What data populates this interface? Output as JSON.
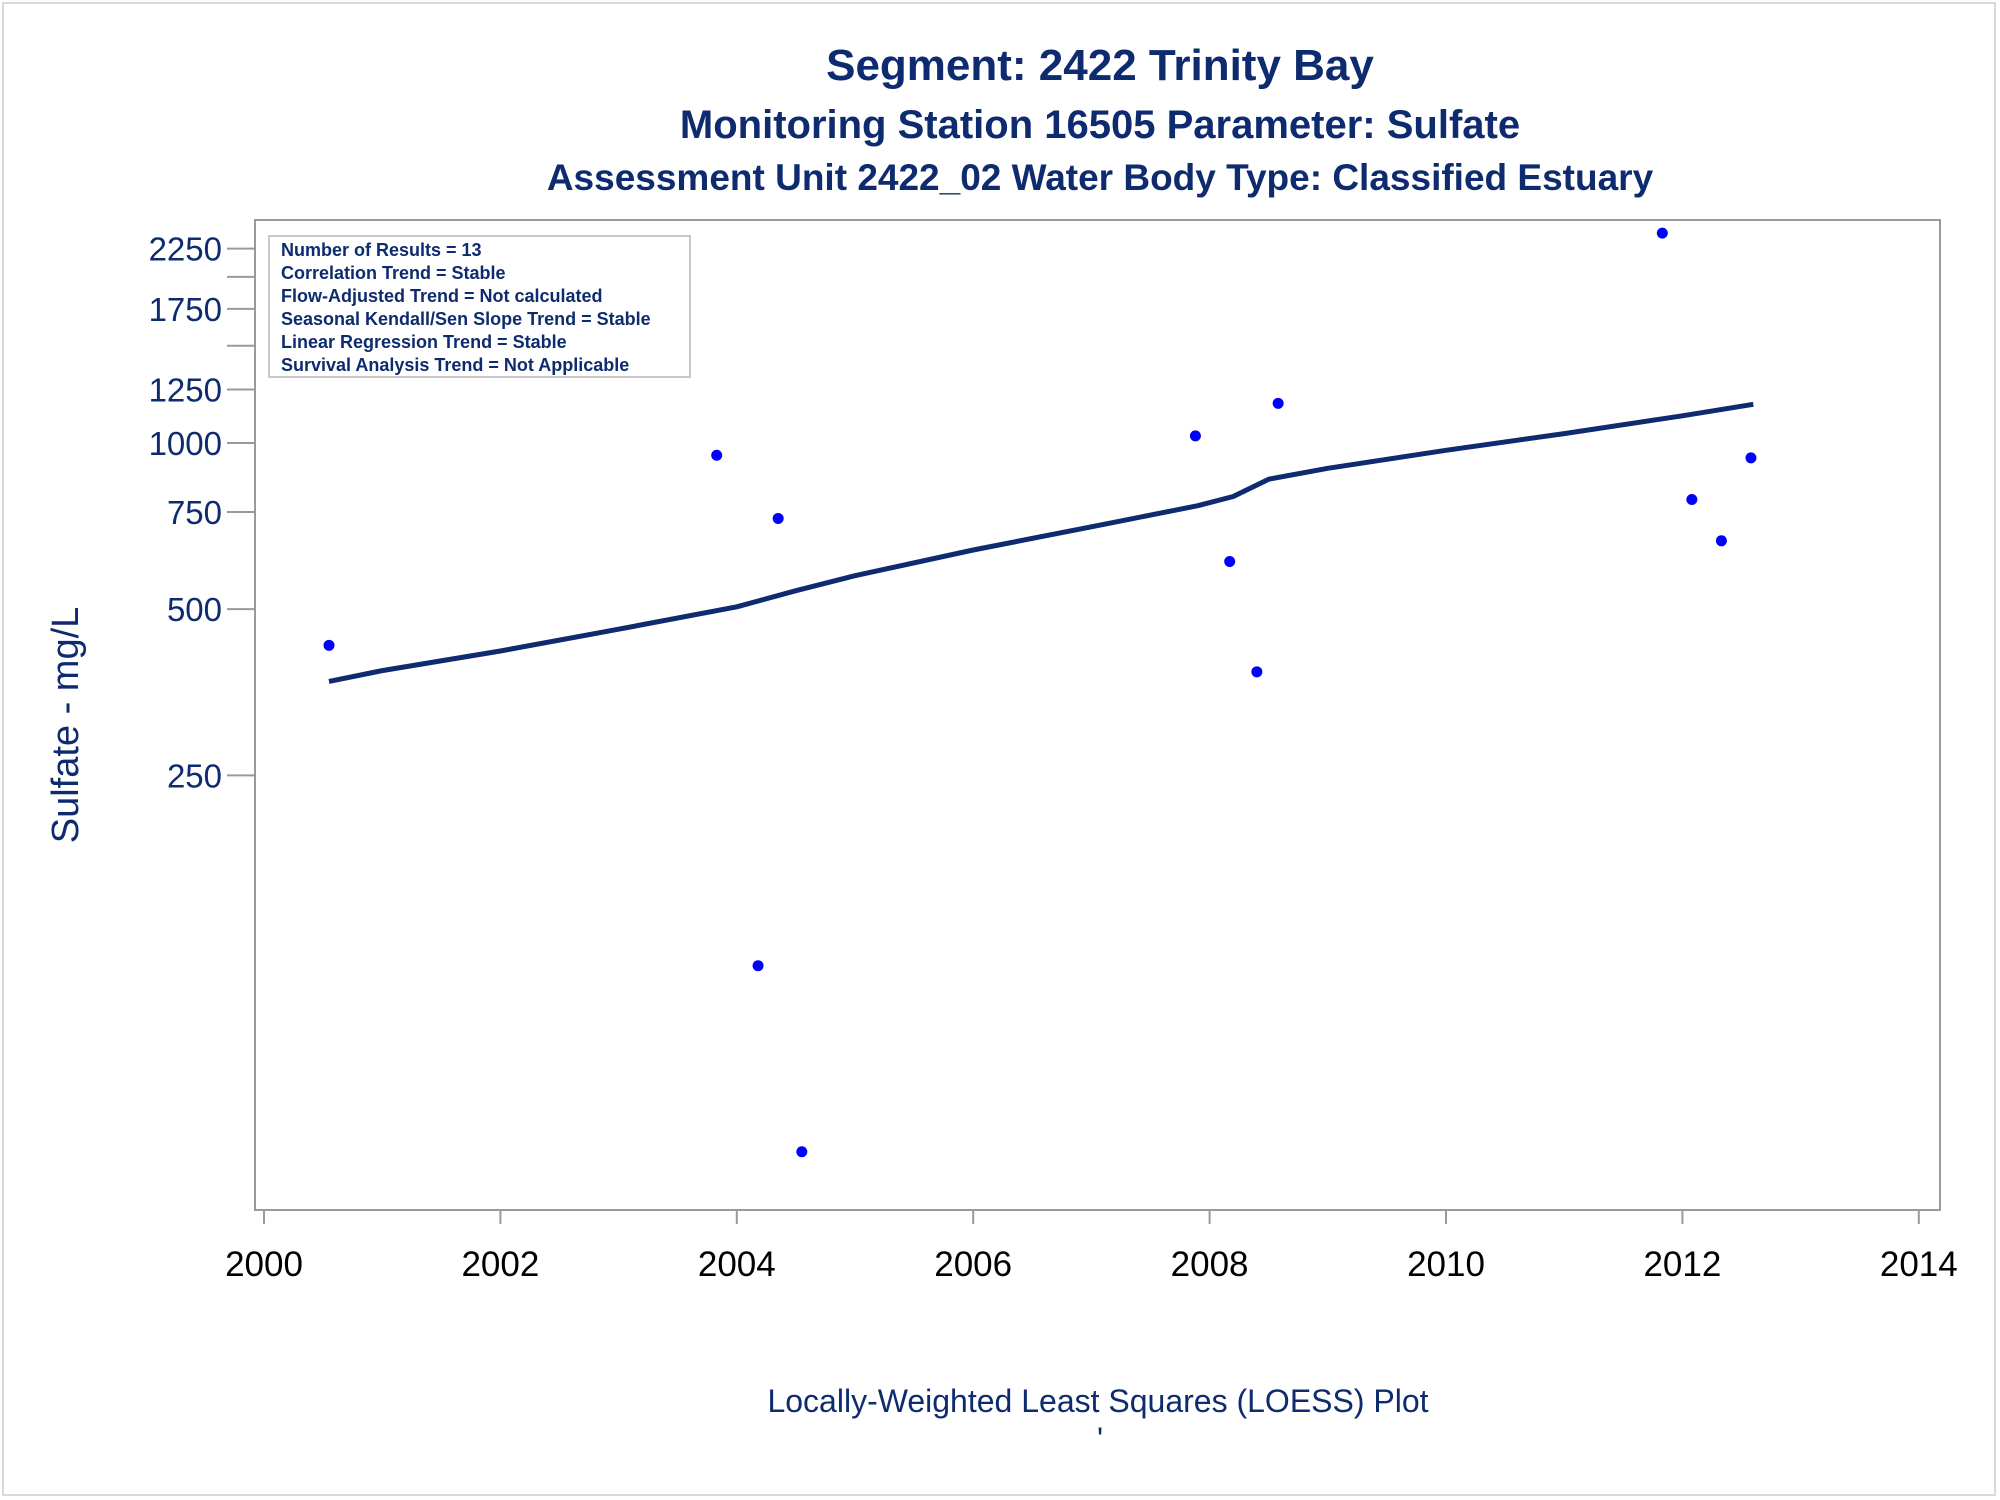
{
  "chart_data": {
    "type": "scatter",
    "title": "Segment: 2422  Trinity Bay",
    "subtitle": "Monitoring Station 16505 Parameter: Sulfate",
    "subtitle2": "Assessment Unit 2422_02   Water Body Type: Classified Estuary",
    "xlabel": "Locally-Weighted Least Squares (LOESS) Plot",
    "ylabel": "Sulfate - mg/L",
    "footnote": "'",
    "y_scale": "log",
    "xlim": [
      2000,
      2014
    ],
    "ylim": [
      50,
      2500
    ],
    "x_ticks": [
      2000,
      2002,
      2004,
      2006,
      2008,
      2010,
      2012,
      2014
    ],
    "y_ticks": [
      250,
      500,
      750,
      1000,
      1250,
      1750,
      2250
    ],
    "y_ticks_unlabeled": [
      1500,
      2000
    ],
    "stats_box": [
      "Number of Results = 13",
      "Correlation Trend = Stable",
      "Flow-Adjusted Trend = Not calculated",
      "Seasonal Kendall/Sen Slope Trend = Stable",
      "Linear Regression Trend = Stable",
      "Survival Analysis Trend = Not Applicable"
    ],
    "series": [
      {
        "type": "scatter",
        "color": "#0000ff",
        "x": [
          2000.55,
          2003.83,
          2004.18,
          2004.35,
          2004.55,
          2007.88,
          2008.17,
          2008.4,
          2008.58,
          2011.83,
          2012.08,
          2012.33,
          2012.58
        ],
        "y": [
          430,
          950,
          113,
          730,
          52,
          1030,
          610,
          385,
          1180,
          2400,
          790,
          665,
          940
        ]
      },
      {
        "type": "line",
        "color": "#0d2b6e",
        "x": [
          2000.55,
          2001.0,
          2002.0,
          2003.0,
          2004.0,
          2004.5,
          2005.0,
          2006.0,
          2007.0,
          2007.9,
          2008.2,
          2008.5,
          2009.0,
          2010.0,
          2011.0,
          2012.0,
          2012.6
        ],
        "y": [
          370,
          387,
          420,
          460,
          505,
          540,
          575,
          640,
          705,
          770,
          800,
          860,
          900,
          970,
          1040,
          1120,
          1175
        ]
      }
    ]
  }
}
